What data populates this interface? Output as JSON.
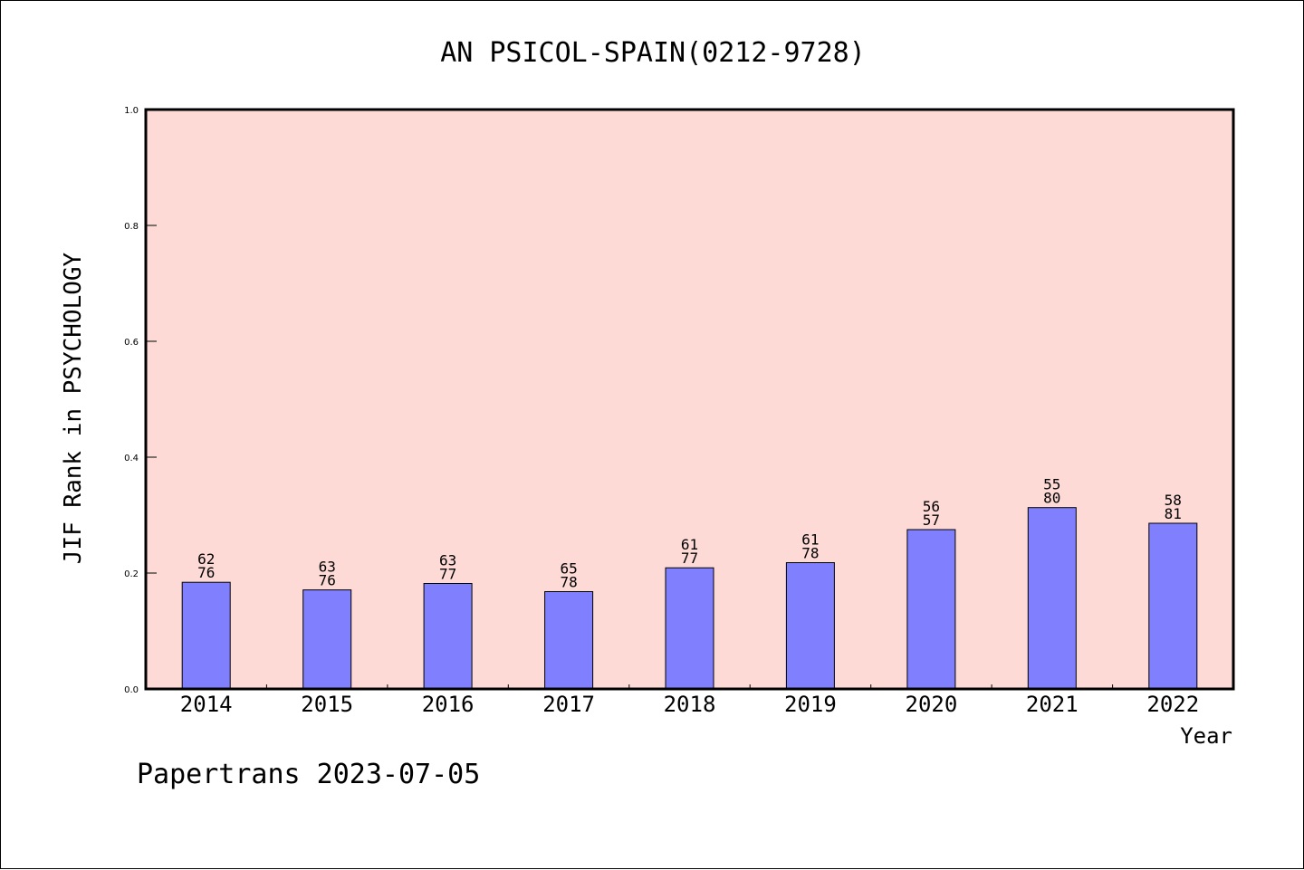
{
  "colors": {
    "plot_background": "#fddad6",
    "bar_fill": "#8080ff",
    "axis": "#000000",
    "text": "#000000"
  },
  "chart_data": {
    "type": "bar",
    "title": "AN PSICOL-SPAIN(0212-9728)",
    "xlabel": "Year",
    "ylabel": "JIF Rank in PSYCHOLOGY",
    "ylim": [
      0.0,
      1.0
    ],
    "yticks": [
      "0.0",
      "0.2",
      "0.4",
      "0.6",
      "0.8",
      "1.0"
    ],
    "grid": false,
    "categories": [
      "2014",
      "2015",
      "2016",
      "2017",
      "2018",
      "2019",
      "2020",
      "2021",
      "2022"
    ],
    "values": [
      0.184,
      0.171,
      0.182,
      0.168,
      0.209,
      0.218,
      0.275,
      0.313,
      0.286
    ],
    "labels_top": [
      "62",
      "63",
      "63",
      "65",
      "61",
      "61",
      "56",
      "55",
      "58"
    ],
    "labels_bottom": [
      "76",
      "76",
      "77",
      "78",
      "77",
      "78",
      "57",
      "80",
      "81"
    ]
  },
  "footer": "Papertrans 2023-07-05"
}
